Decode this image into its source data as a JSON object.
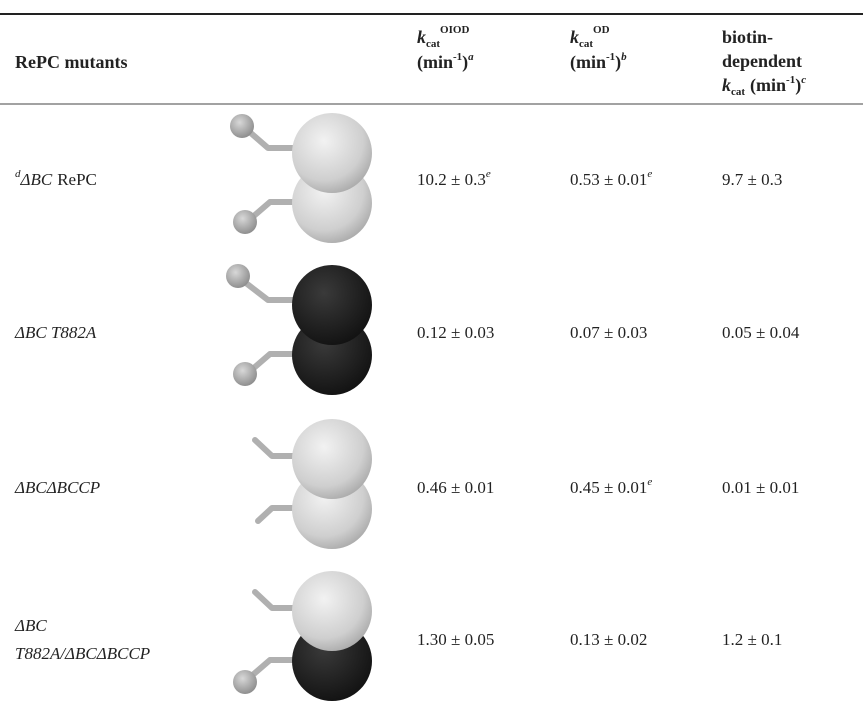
{
  "header": {
    "columns": [
      {
        "label": "RePC mutants"
      },
      {
        "symbol": "k",
        "subscript": "cat",
        "superscript": "OIOD",
        "unit": "(min",
        "unit_exponent": "-1",
        "unit_close": ")",
        "footnote": "a"
      },
      {
        "symbol": "k",
        "subscript": "cat",
        "superscript": "OD",
        "unit": "(min",
        "unit_exponent": "-1",
        "unit_close": ")",
        "footnote": "b"
      },
      {
        "lines": [
          "biotin-",
          "dependent"
        ],
        "symbol": "k",
        "subscript": "cat",
        "unit": "(min",
        "unit_exponent": "-1",
        "unit_close": ")",
        "footnote": "c"
      }
    ]
  },
  "rows": [
    {
      "footnote": "d",
      "name_lines": [
        [
          {
            "text": "ΔBC",
            "italic": true
          },
          {
            "text": "RePC",
            "italic": false
          }
        ]
      ],
      "oiod": "10.2 ± 0.3",
      "oiod_footnote": "e",
      "od": "0.53 ± 0.01",
      "od_footnote": "e",
      "biotin": "9.7 ± 0.3"
    },
    {
      "name_lines": [
        [
          {
            "text": "ΔBC T882A",
            "italic": true
          }
        ]
      ],
      "oiod": "0.12 ± 0.03",
      "od": "0.07 ± 0.03",
      "biotin": "0.05 ± 0.04"
    },
    {
      "name_lines": [
        [
          {
            "text": "ΔBCΔBCCP",
            "italic": true
          }
        ]
      ],
      "oiod": "0.46 ± 0.01",
      "od": "0.45 ± 0.01",
      "od_footnote": "e",
      "biotin": "0.01 ± 0.01"
    },
    {
      "name_lines": [
        [
          {
            "text": "ΔBC",
            "italic": true
          }
        ],
        [
          {
            "text": "T882A/ΔBCΔBCCP",
            "italic": true
          }
        ]
      ],
      "oiod": "1.30 ± 0.05",
      "od": "0.13 ± 0.02",
      "biotin": "1.2 ± 0.1"
    }
  ]
}
